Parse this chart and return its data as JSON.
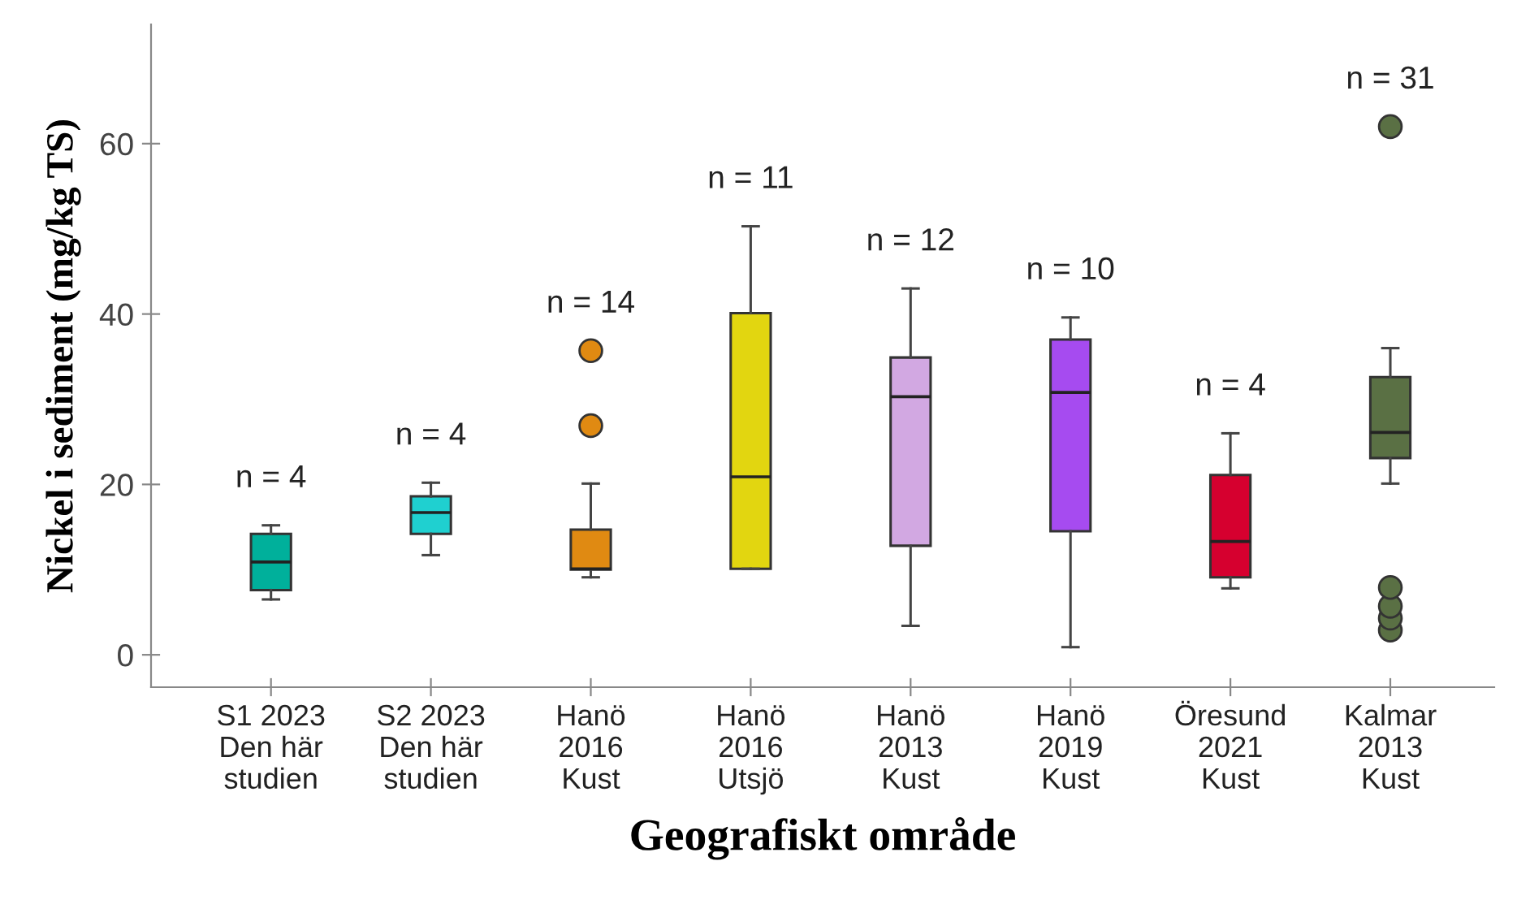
{
  "chart_data": {
    "type": "box",
    "xlabel": "Geografiskt område",
    "ylabel": "Nickel i sediment (mg/kg TS)",
    "categories": [
      "S1 2023\nDen här\nstudien",
      "S2 2023\nDen här\nstudien",
      "Hanö\n2016\nKust",
      "Hanö\n2016\nUtsjö",
      "Hanö\n2013\nKust",
      "Hanö\n2019\nKust",
      "Öresund\n2021\nKust",
      "Kalmar\n2013\nKust"
    ],
    "colors": [
      "#00b09b",
      "#1fd0d0",
      "#e08a12",
      "#e2d610",
      "#d2a8e2",
      "#a64bf0",
      "#d6002f",
      "#5a7044"
    ],
    "boxes": [
      {
        "low": 6.5,
        "q1": 7.6,
        "median": 10.9,
        "q3": 14.2,
        "high": 15.2
      },
      {
        "low": 11.7,
        "q1": 14.2,
        "median": 16.7,
        "q3": 18.6,
        "high": 20.2
      },
      {
        "low": 9.1,
        "q1": 10.0,
        "median": 10.1,
        "q3": 14.7,
        "high": 20.1,
        "outliers": [
          26.9,
          35.7
        ]
      },
      {
        "low": 10.1,
        "q1": 10.1,
        "median": 20.9,
        "q3": 40.1,
        "high": 50.3
      },
      {
        "low": 3.4,
        "q1": 12.8,
        "median": 30.3,
        "q3": 34.9,
        "high": 43.0
      },
      {
        "low": 0.9,
        "q1": 14.5,
        "median": 30.8,
        "q3": 37.0,
        "high": 39.6
      },
      {
        "low": 7.8,
        "q1": 9.1,
        "median": 13.3,
        "q3": 21.1,
        "high": 26.0
      },
      {
        "low": 20.1,
        "q1": 23.1,
        "median": 26.1,
        "q3": 32.6,
        "high": 36.0,
        "outliers": [
          2.9,
          4.3,
          5.7,
          7.9,
          62.0
        ]
      }
    ],
    "annotations": [
      "n = 4",
      "n = 4",
      "n = 14",
      "n = 11",
      "n = 12",
      "n = 10",
      "n = 4",
      "n = 31"
    ],
    "ylim": [
      -3.8,
      74
    ],
    "yticks": [
      0,
      20,
      40,
      60
    ],
    "grid": false,
    "legend": false
  }
}
